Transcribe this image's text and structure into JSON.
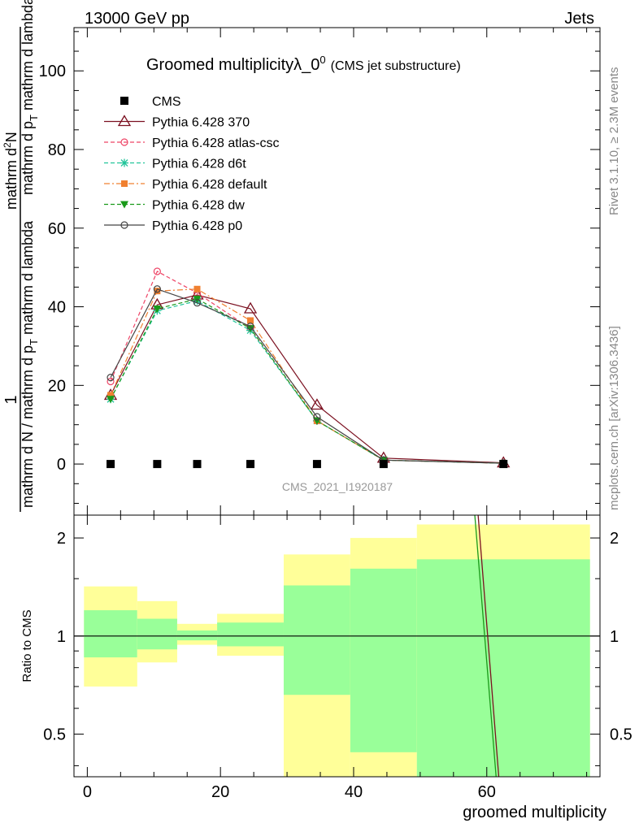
{
  "header": {
    "energy_label": "13000 GeV pp",
    "category_label": "Jets"
  },
  "side_labels": {
    "rivet": "Rivet 3.1.10, ≥ 2.3M events",
    "mcplots": "mcplots.cern.ch [arXiv:1306.3436]"
  },
  "watermark": "CMS_2021_I1920187",
  "chart_data": [
    {
      "type": "line",
      "title": "Groomed multiplicityλ_0",
      "title_sup": "0",
      "subtitle": "(CMS jet substructure)",
      "ylabel": {
        "frac_top": "1",
        "frac_bottom": "mathrm d N / mathrm d p",
        "frac_bottom_sub": "T",
        "frac_bottom_tail": " mathrm d lambda",
        "second_frac_top": "mathrm d",
        "second_frac_top_sup": "2",
        "second_frac_top_tail": "N",
        "second_frac_bottom": "mathrm d p",
        "second_frac_bottom_sub": "T",
        "second_frac_bottom_tail": " mathrm d lambda"
      },
      "ylim": [
        -13,
        111
      ],
      "xlim": [
        -2,
        77
      ],
      "y_ticks": [
        0,
        20,
        40,
        60,
        80,
        100
      ],
      "legend_position": "top-left",
      "series": [
        {
          "name": "CMS",
          "style": "square",
          "color": "#000000",
          "x": [
            3.5,
            10.5,
            16.5,
            24.5,
            34.5,
            44.5,
            62.5
          ],
          "y": [
            0,
            0,
            0,
            0,
            0,
            0,
            0
          ]
        },
        {
          "name": "Pythia 6.428 370",
          "style": "triangle-open",
          "color": "#7b1020",
          "dash": "solid",
          "x": [
            3.5,
            10.5,
            16.5,
            24.5,
            34.5,
            44.5,
            62.5
          ],
          "y": [
            17.5,
            40.5,
            43.0,
            39.5,
            15.0,
            1.5,
            0.3
          ]
        },
        {
          "name": "Pythia 6.428 atlas-csc",
          "style": "circle-open",
          "color": "#ee4466",
          "dash": "dashed",
          "x": [
            3.5,
            10.5,
            16.5,
            24.5,
            34.5,
            44.5,
            62.5
          ],
          "y": [
            21.0,
            49.0,
            43.5,
            34.5,
            11.0,
            1.0,
            0.2
          ]
        },
        {
          "name": "Pythia 6.428 d6t",
          "style": "star",
          "color": "#22c49a",
          "dash": "dashed",
          "x": [
            3.5,
            10.5,
            16.5,
            24.5,
            34.5,
            44.5,
            62.5
          ],
          "y": [
            16.5,
            39.0,
            41.5,
            34.0,
            11.0,
            1.0,
            0.2
          ]
        },
        {
          "name": "Pythia 6.428 default",
          "style": "square-filled",
          "color": "#f08030",
          "dash": "dashdot",
          "x": [
            3.5,
            10.5,
            16.5,
            24.5,
            34.5,
            44.5,
            62.5
          ],
          "y": [
            17.5,
            44.0,
            44.5,
            36.5,
            11.0,
            1.0,
            0.2
          ]
        },
        {
          "name": "Pythia 6.428 dw",
          "style": "triangle-down-filled",
          "color": "#1a9a1a",
          "dash": "dashed",
          "x": [
            3.5,
            10.5,
            16.5,
            24.5,
            34.5,
            44.5,
            62.5
          ],
          "y": [
            16.5,
            39.5,
            42.0,
            34.5,
            11.0,
            1.0,
            0.2
          ]
        },
        {
          "name": "Pythia 6.428 p0",
          "style": "circle-open",
          "color": "#444444",
          "dash": "solid",
          "x": [
            3.5,
            10.5,
            16.5,
            24.5,
            34.5,
            44.5,
            62.5
          ],
          "y": [
            22.0,
            44.5,
            41.0,
            35.0,
            12.0,
            1.0,
            0.2
          ]
        }
      ]
    },
    {
      "type": "area",
      "ylabel": "Ratio to CMS",
      "xlabel": "groomed multiplicity",
      "xlim": [
        -2,
        77
      ],
      "ylim_log": [
        0.37,
        2.35
      ],
      "x_ticks": [
        0,
        20,
        40,
        60
      ],
      "y_ticks": [
        0.5,
        1,
        2
      ],
      "bands": {
        "x_edges": [
          -0.5,
          7.5,
          13.5,
          19.5,
          29.5,
          39.5,
          49.5,
          75.5
        ],
        "yellow_lo": [
          0.7,
          0.83,
          0.94,
          0.87,
          0.2,
          0.28,
          0.2
        ],
        "yellow_hi": [
          1.42,
          1.28,
          1.09,
          1.17,
          1.78,
          2.0,
          2.2
        ],
        "green_lo": [
          0.86,
          0.91,
          0.97,
          0.93,
          0.66,
          0.44,
          0.2
        ],
        "green_hi": [
          1.2,
          1.13,
          1.04,
          1.1,
          1.43,
          1.61,
          1.72
        ]
      },
      "ratio_lines": [
        {
          "color": "#7b1020",
          "x": [
            58.7,
            61.8
          ],
          "y": [
            2.35,
            0.37
          ]
        },
        {
          "color": "#1a9a1a",
          "x": [
            58.2,
            61.4
          ],
          "y": [
            2.35,
            0.37
          ]
        }
      ]
    }
  ]
}
